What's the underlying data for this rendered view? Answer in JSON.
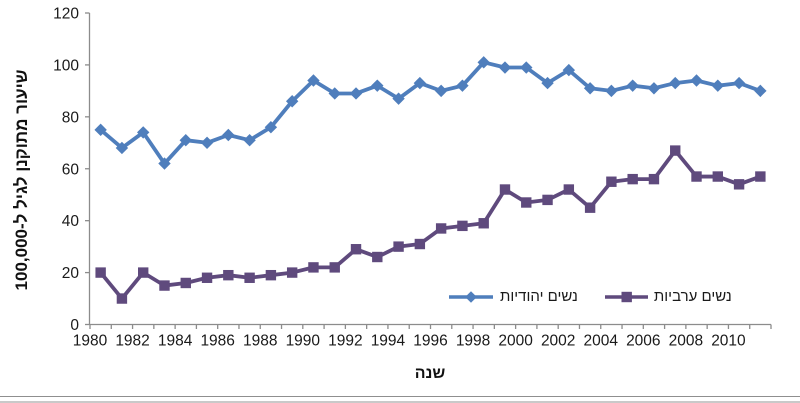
{
  "axes": {
    "y_title": "שיעור מתוקנן לגיל ל-100,000",
    "x_title": "שנה",
    "y_tick_labels": [
      "0",
      "20",
      "40",
      "60",
      "80",
      "100",
      "120"
    ],
    "x_tick_labels": [
      "1980",
      "1982",
      "1984",
      "1986",
      "1988",
      "1990",
      "1992",
      "1994",
      "1996",
      "1998",
      "2000",
      "2002",
      "2004",
      "2006",
      "2008",
      "2010"
    ]
  },
  "legend": {
    "items": [
      {
        "label": "נשים יהודיות",
        "marker": "diamond",
        "color": "#4F7EBC"
      },
      {
        "label": "נשים ערביות",
        "marker": "square",
        "color": "#5F4A7D"
      }
    ]
  },
  "colors": {
    "jewish_series": "#4F7EBC",
    "arab_series": "#5F4A7D",
    "axis_line": "#8C8C8C",
    "tick_text": "#1a1a1a"
  },
  "chart_data": {
    "type": "line",
    "x": [
      1980,
      1981,
      1982,
      1983,
      1984,
      1985,
      1986,
      1987,
      1988,
      1989,
      1990,
      1991,
      1992,
      1993,
      1994,
      1995,
      1996,
      1997,
      1998,
      1999,
      2000,
      2001,
      2002,
      2003,
      2004,
      2005,
      2006,
      2007,
      2008,
      2009,
      2010,
      2011
    ],
    "series": [
      {
        "name": "נשים יהודיות",
        "marker": "diamond",
        "color": "#4F7EBC",
        "values": [
          75,
          68,
          74,
          62,
          71,
          70,
          73,
          71,
          76,
          86,
          94,
          89,
          89,
          92,
          87,
          93,
          90,
          92,
          101,
          99,
          99,
          93,
          98,
          91,
          90,
          92,
          91,
          93,
          94,
          92,
          93,
          90
        ]
      },
      {
        "name": "נשים ערביות",
        "marker": "square",
        "color": "#5F4A7D",
        "values": [
          20,
          10,
          20,
          15,
          16,
          18,
          19,
          18,
          19,
          20,
          22,
          22,
          29,
          26,
          30,
          31,
          37,
          38,
          39,
          52,
          47,
          48,
          52,
          45,
          55,
          56,
          56,
          67,
          57,
          57,
          54,
          57
        ]
      }
    ],
    "title": "",
    "xlabel": "שנה",
    "ylabel": "שיעור מתוקנן לגיל ל-100,000",
    "ylim": [
      0,
      120
    ],
    "y_tick_step": 20,
    "x_tick_label_every": 2,
    "grid": false,
    "legend_position": "bottom-inside"
  }
}
